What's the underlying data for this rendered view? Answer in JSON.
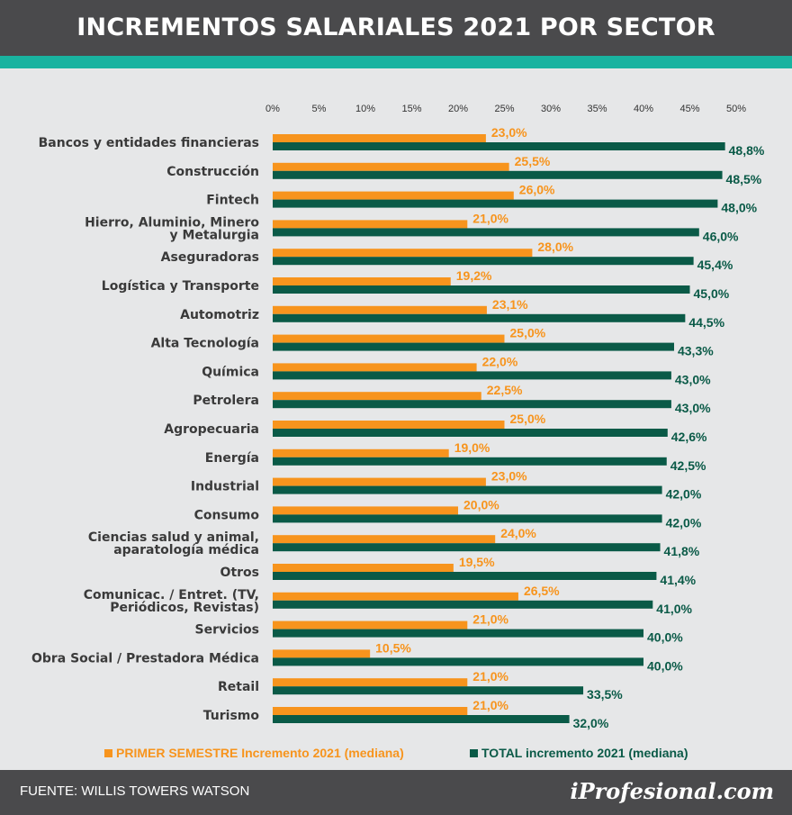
{
  "header": {
    "title": "INCREMENTOS SALARIALES 2021 POR SECTOR"
  },
  "colors": {
    "header_bg": "#4a4a4c",
    "accent": "#19b3a0",
    "first_half": "#f7941d",
    "total": "#0a5a47",
    "background": "#e6e7e8"
  },
  "legend": {
    "first_half": "PRIMER SEMESTRE Incremento 2021 (mediana)",
    "total": "TOTAL incremento 2021 (mediana)"
  },
  "footer": {
    "source": "FUENTE:  WILLIS TOWERS WATSON",
    "brand": "iProfesional.com"
  },
  "chart_data": {
    "type": "bar",
    "orientation": "horizontal",
    "title": "INCREMENTOS SALARIALES 2021 POR SECTOR",
    "categories": [
      [
        "Bancos y entidades financieras"
      ],
      [
        "Construcción"
      ],
      [
        "Fintech"
      ],
      [
        "Hierro, Aluminio, Minero",
        "y Metalurgia"
      ],
      [
        "Aseguradoras"
      ],
      [
        "Logística y Transporte"
      ],
      [
        "Automotriz"
      ],
      [
        "Alta Tecnología"
      ],
      [
        "Química"
      ],
      [
        "Petrolera"
      ],
      [
        "Agropecuaria"
      ],
      [
        "Energía"
      ],
      [
        "Industrial"
      ],
      [
        "Consumo"
      ],
      [
        "Ciencias salud y animal,",
        "aparatología médica"
      ],
      [
        "Otros"
      ],
      [
        "Comunicac. / Entret. (TV,",
        "Periódicos, Revistas)"
      ],
      [
        "Servicios"
      ],
      [
        "Obra Social / Prestadora Médica"
      ],
      [
        "Retail"
      ],
      [
        "Turismo"
      ]
    ],
    "series": [
      {
        "name": "PRIMER SEMESTRE Incremento 2021 (mediana)",
        "color": "#f7941d",
        "values": [
          23.0,
          25.5,
          26.0,
          21.0,
          28.0,
          19.2,
          23.1,
          25.0,
          22.0,
          22.5,
          25.0,
          19.0,
          23.0,
          20.0,
          24.0,
          19.5,
          26.5,
          21.0,
          10.5,
          21.0,
          21.0
        ],
        "labels": [
          "23,0%",
          "25,5%",
          "26,0%",
          "21,0%",
          "28,0%",
          "19,2%",
          "23,1%",
          "25,0%",
          "22,0%",
          "22,5%",
          "25,0%",
          "19,0%",
          "23,0%",
          "20,0%",
          "24,0%",
          "19,5%",
          "26,5%",
          "21,0%",
          "10,5%",
          "21,0%",
          "21,0%"
        ]
      },
      {
        "name": "TOTAL incremento 2021 (mediana)",
        "color": "#0a5a47",
        "values": [
          48.8,
          48.5,
          48.0,
          46.0,
          45.4,
          45.0,
          44.5,
          43.3,
          43.0,
          43.0,
          42.6,
          42.5,
          42.0,
          42.0,
          41.8,
          41.4,
          41.0,
          40.0,
          40.0,
          33.5,
          32.0
        ],
        "labels": [
          "48,8%",
          "48,5%",
          "48,0%",
          "46,0%",
          "45,4%",
          "45,0%",
          "44,5%",
          "43,3%",
          "43,0%",
          "43,0%",
          "42,6%",
          "42,5%",
          "42,0%",
          "42,0%",
          "41,8%",
          "41,4%",
          "41,0%",
          "40,0%",
          "40,0%",
          "33,5%",
          "32,0%"
        ]
      }
    ],
    "xlim": [
      0,
      50
    ],
    "ticks": [
      "0%",
      "5%",
      "10%",
      "15%",
      "20%",
      "25%",
      "30%",
      "35%",
      "40%",
      "45%",
      "50%"
    ],
    "tick_values": [
      0,
      5,
      10,
      15,
      20,
      25,
      30,
      35,
      40,
      45,
      50
    ],
    "grid": false,
    "legend_position": "bottom"
  }
}
